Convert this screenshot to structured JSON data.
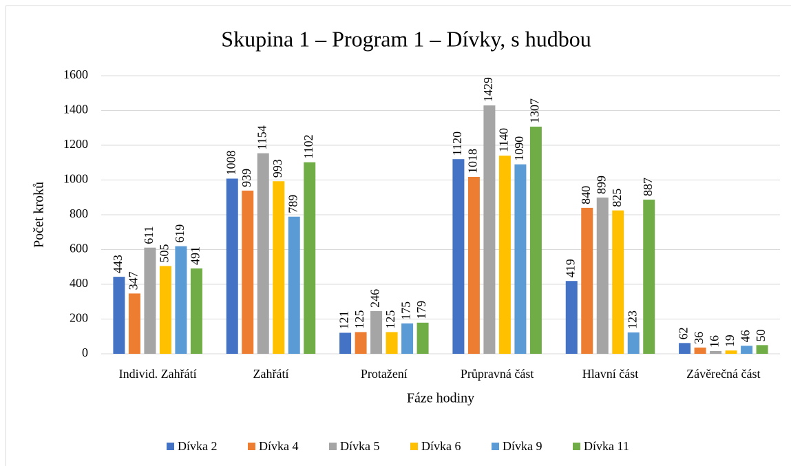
{
  "chart_data": {
    "type": "bar",
    "title": "Skupina 1 – Program 1 – Dívky, s hudbou",
    "x_label": "Fáze hodiny",
    "y_label": "Počet kroků",
    "categories": [
      "Individ. Zahřátí",
      "Zahřátí",
      "Protažení",
      "Průpravná část",
      "Hlavní část",
      "Závěrečná část"
    ],
    "series": [
      {
        "name": "Dívka 2",
        "color": "#4472c4",
        "values": [
          443,
          1008,
          121,
          1120,
          419,
          62
        ]
      },
      {
        "name": "Dívka 4",
        "color": "#ed7d31",
        "values": [
          347,
          939,
          125,
          1018,
          840,
          36
        ]
      },
      {
        "name": "Dívka 5",
        "color": "#a5a5a5",
        "values": [
          611,
          1154,
          246,
          1429,
          899,
          16
        ]
      },
      {
        "name": "Dívka 6",
        "color": "#ffc000",
        "values": [
          505,
          993,
          125,
          1140,
          825,
          19
        ]
      },
      {
        "name": "Dívka 9",
        "color": "#5b9bd5",
        "values": [
          619,
          789,
          175,
          1090,
          123,
          46
        ]
      },
      {
        "name": "Dívka 11",
        "color": "#70ad47",
        "values": [
          491,
          1102,
          179,
          1307,
          887,
          50
        ]
      }
    ],
    "ylim": [
      0,
      1600
    ],
    "yticks": [
      0,
      200,
      400,
      600,
      800,
      1000,
      1200,
      1400,
      1600
    ],
    "grid": true,
    "legend": "bottom"
  }
}
